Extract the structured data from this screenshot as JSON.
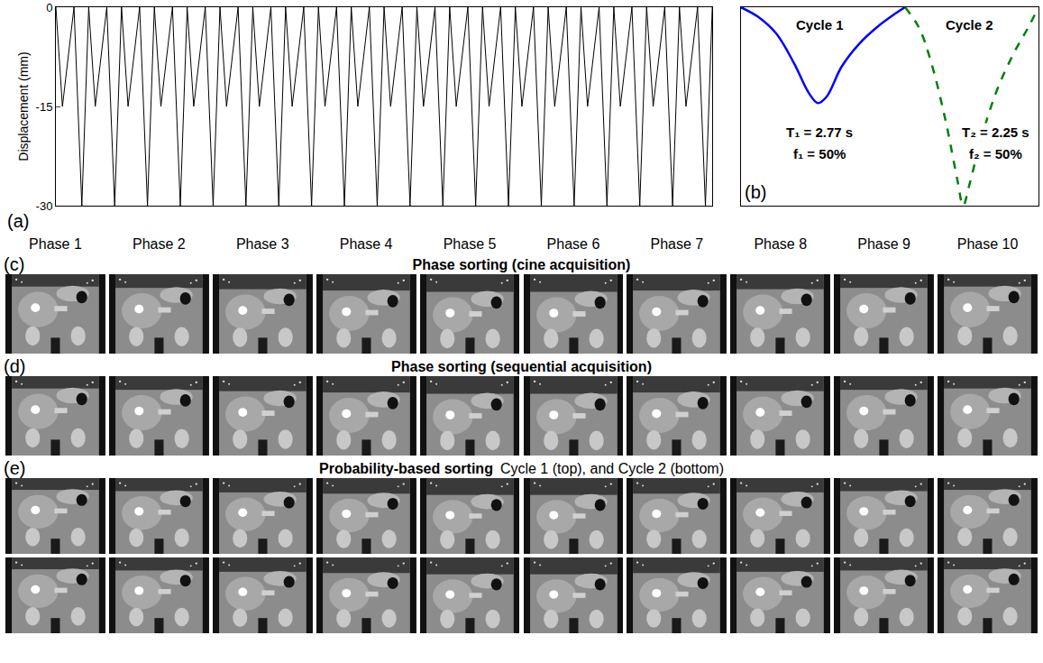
{
  "chart_data": [
    {
      "type": "line",
      "panel": "(a)",
      "y_label": "Displacement (mm)",
      "x": [
        0,
        1.0,
        2.77,
        3.97,
        5.02,
        6.02,
        7.79,
        8.99,
        10.04,
        11.04,
        12.81,
        14.01,
        15.06,
        16.06,
        17.83,
        19.03,
        20.08,
        21.08,
        22.85,
        24.05,
        25.1,
        26.1,
        27.87,
        29.07,
        30.12,
        31.12,
        32.89,
        34.09,
        35.14,
        36.14,
        37.91,
        39.11,
        40.16,
        41.16,
        42.93,
        44.13,
        45.18,
        46.18,
        47.95,
        49.15,
        50.2,
        51.2,
        52.97,
        54.17,
        55.22,
        56.22,
        57.99,
        59.19,
        60.24,
        61.24,
        63.01,
        64.21,
        65.26,
        66.26,
        68.03,
        69.23,
        70.28,
        71.28,
        73.05,
        74.25,
        75.3,
        76.3,
        78.07,
        79.27,
        80.32,
        81.32,
        83.09,
        84.29,
        85.34,
        86.34,
        88.11,
        89.31,
        90.36,
        91.36,
        93.13,
        94.33,
        95.38,
        96.38,
        98.15,
        99.35,
        100.4
      ],
      "values": [
        0,
        -15,
        0,
        -30,
        0,
        -15,
        0,
        -30,
        0,
        -15,
        0,
        -30,
        0,
        -15,
        0,
        -30,
        0,
        -15,
        0,
        -30,
        0,
        -15,
        0,
        -30,
        0,
        -15,
        0,
        -30,
        0,
        -15,
        0,
        -30,
        0,
        -15,
        0,
        -30,
        0,
        -15,
        0,
        -30,
        0,
        -15,
        0,
        -30,
        0,
        -15,
        0,
        -30,
        0,
        -15,
        0,
        -30,
        0,
        -15,
        0,
        -30,
        0,
        -15,
        0,
        -30,
        0,
        -15,
        0,
        -30,
        0,
        -15,
        0,
        -30,
        0,
        -15,
        0,
        -30,
        0,
        -15,
        0,
        -30,
        0,
        -15,
        0,
        -30,
        0
      ],
      "color": "#000000",
      "xlim": [
        0,
        100.4
      ],
      "ylim": [
        -30,
        0
      ],
      "yticks": [
        -30,
        -15,
        0
      ],
      "tick_labels": "y",
      "grid": false
    },
    {
      "type": "line",
      "panel": "(b)",
      "series": [
        {
          "name": "Cycle 1",
          "color": "#0000ff",
          "line_style": "solid",
          "period_label": "T₁ = 2.77 s",
          "fraction_label": "f₁ = 50%",
          "x": [
            0,
            0.3,
            0.6,
            0.9,
            1.15,
            1.3,
            1.45,
            1.7,
            2.0,
            2.3,
            2.6,
            2.77
          ],
          "values": [
            0,
            -1.5,
            -4,
            -8.5,
            -13,
            -14.5,
            -13.5,
            -9,
            -5.5,
            -3,
            -1,
            0
          ]
        },
        {
          "name": "Cycle 2",
          "color": "#008000",
          "line_style": "dash",
          "period_label": "T₂ = 2.25 s",
          "fraction_label": "f₂ = 50%",
          "x": [
            2.77,
            3.0,
            3.2,
            3.45,
            3.65,
            3.75,
            3.85,
            4.05,
            4.3,
            4.6,
            4.85,
            5.02
          ],
          "values": [
            0,
            -3,
            -8,
            -17,
            -26,
            -30,
            -27,
            -20,
            -13,
            -7,
            -3,
            0
          ]
        }
      ],
      "xlim": [
        0,
        5.02
      ],
      "ylim": [
        -30,
        0
      ],
      "tick_labels": false,
      "grid": false
    }
  ],
  "phases": [
    "Phase 1",
    "Phase 2",
    "Phase 3",
    "Phase 4",
    "Phase 5",
    "Phase 6",
    "Phase 7",
    "Phase 8",
    "Phase 9",
    "Phase 10"
  ],
  "image_rows": [
    {
      "label": "(c)",
      "title": "Phase sorting (cine acquisition)"
    },
    {
      "label": "(d)",
      "title": "Phase sorting (sequential acquisition)"
    },
    {
      "label": "(e)",
      "title": "Probability-based sorting",
      "subtitle": "Cycle 1 (top), and Cycle 2 (bottom)"
    }
  ]
}
